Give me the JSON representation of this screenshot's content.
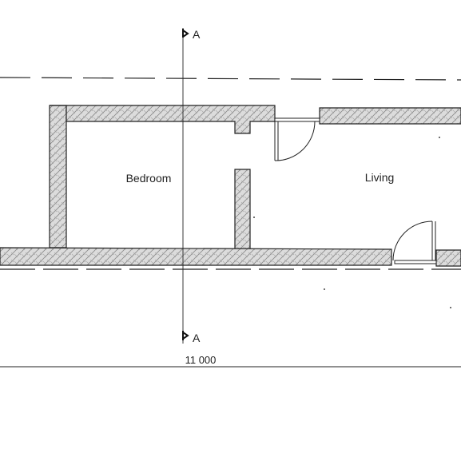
{
  "rooms": {
    "bedroom": "Bedroom",
    "living": "Living"
  },
  "section_markers": {
    "top": "A",
    "bottom": "A"
  },
  "dimension": {
    "overall_width": "11 000"
  }
}
